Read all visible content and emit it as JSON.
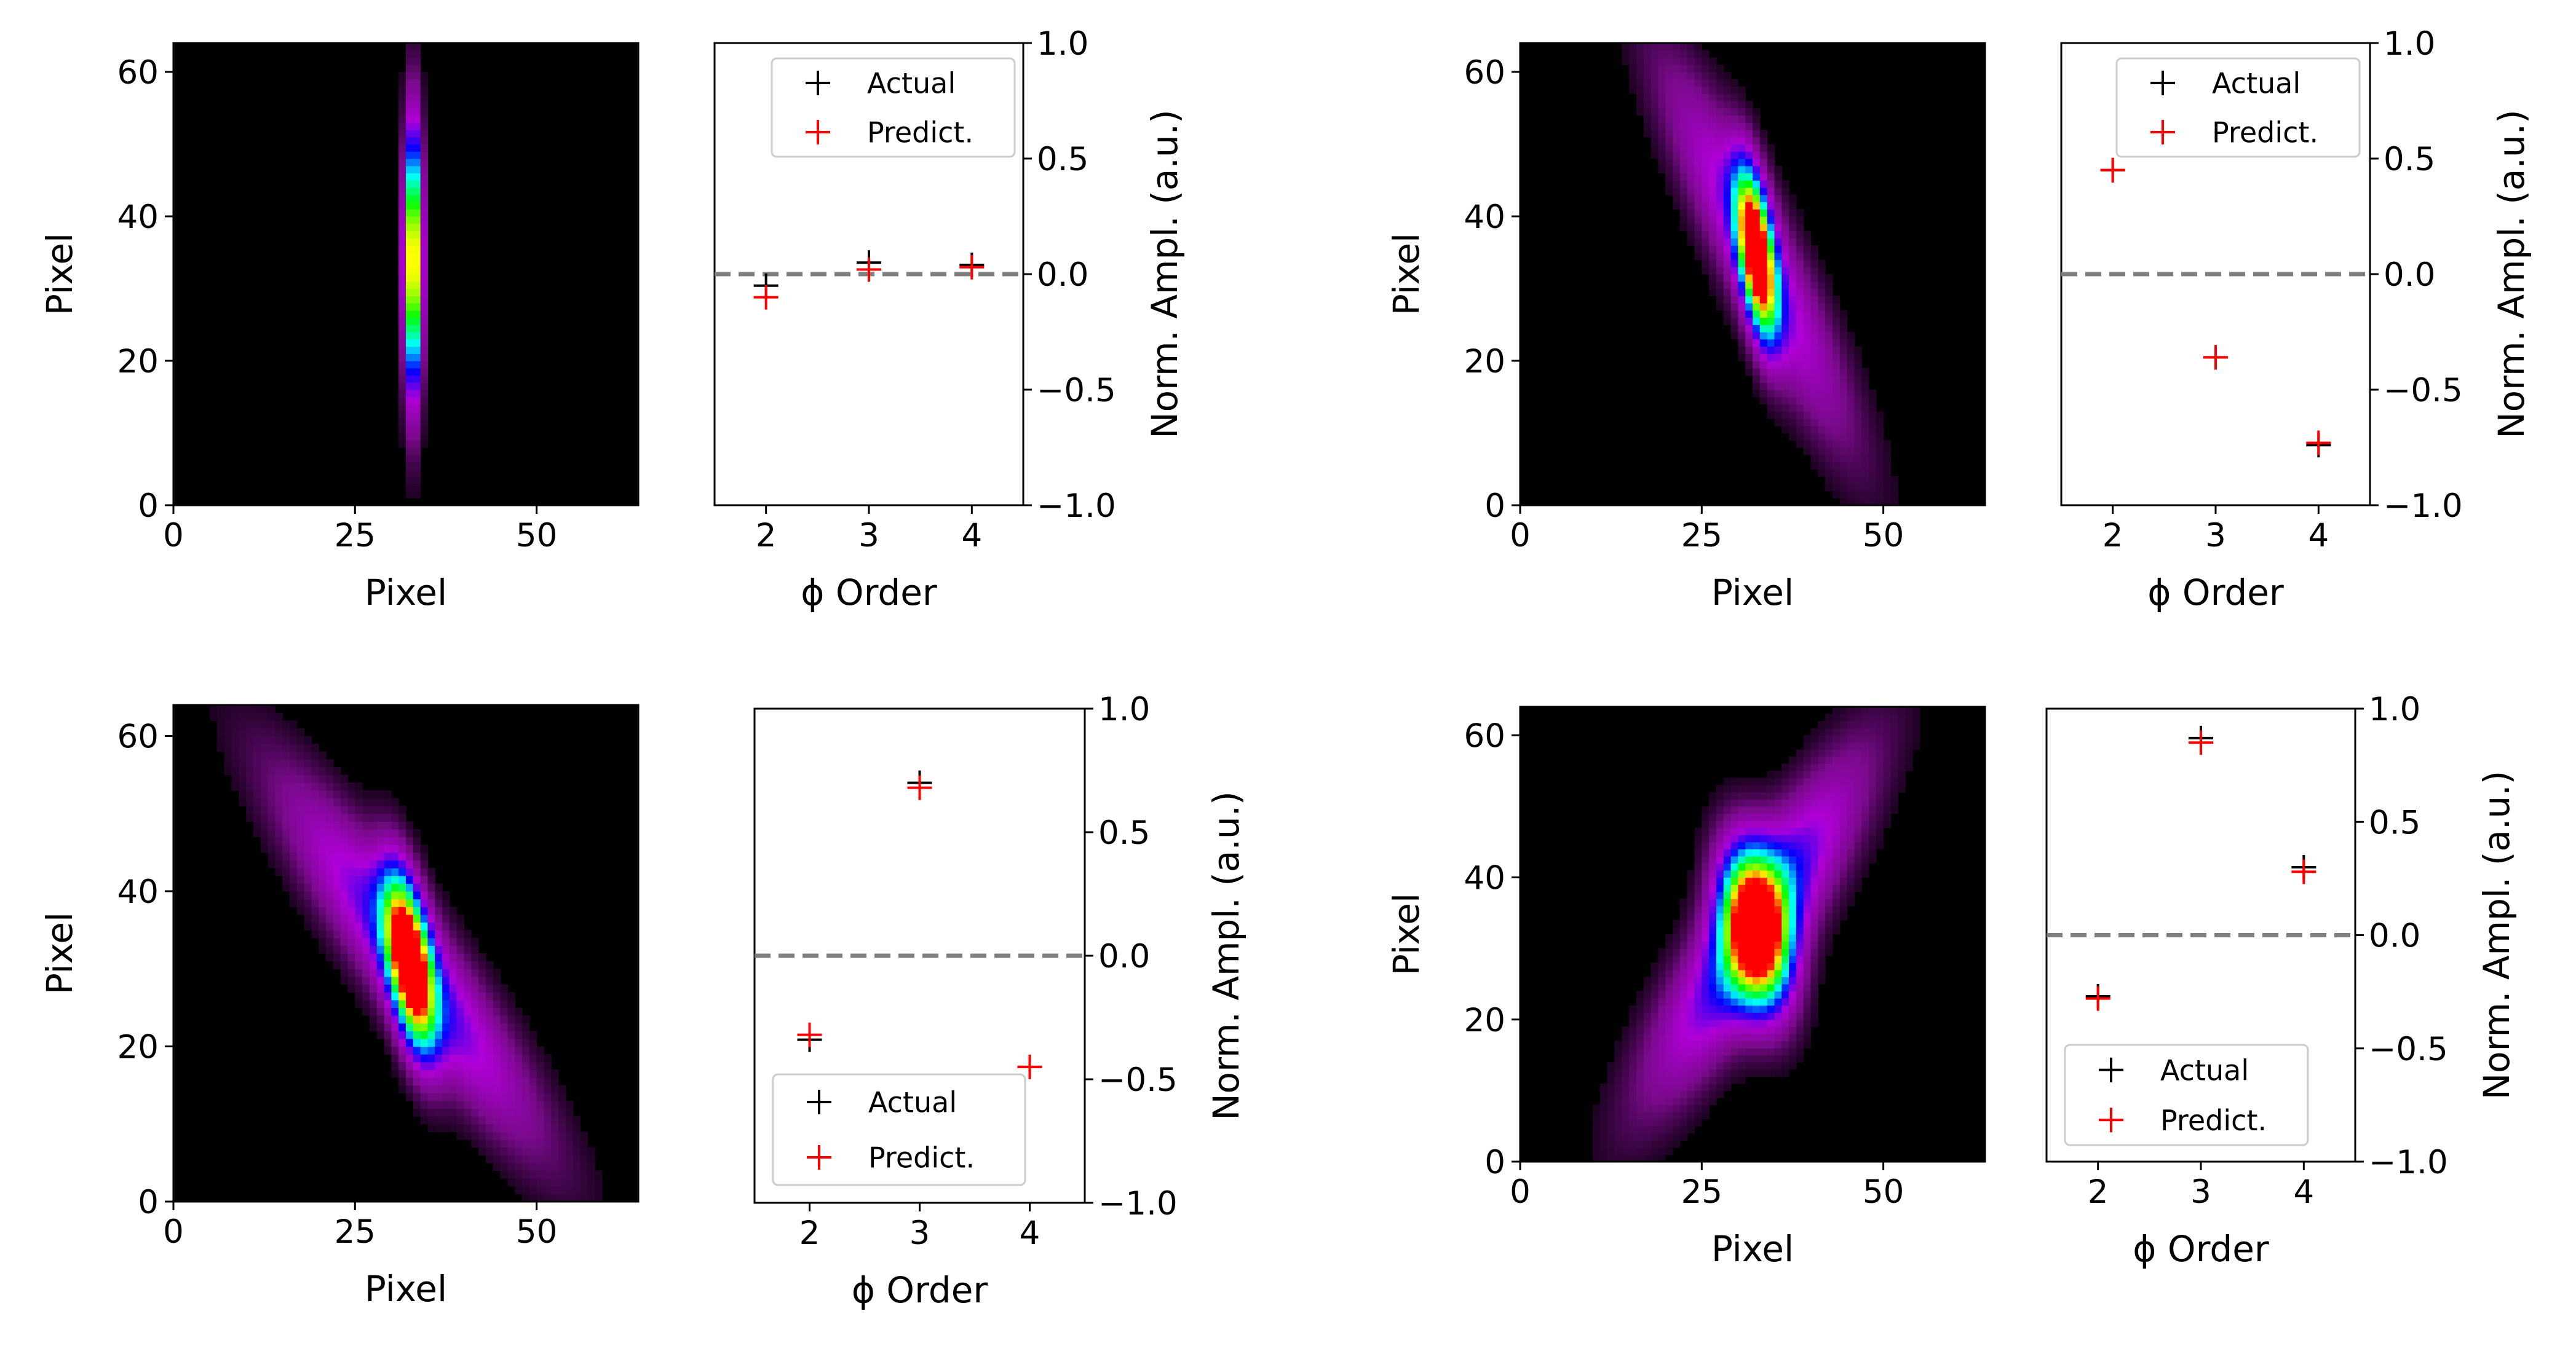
{
  "figure": {
    "axis_color": "#000000",
    "background": "#ffffff",
    "zero_line_color": "#808080",
    "colormap": [
      "#000000",
      "#7a0a8c",
      "#b000d8",
      "#0000ff",
      "#00ffff",
      "#00ff00",
      "#ffff00",
      "#ff0000"
    ]
  },
  "chart_data": [
    {
      "type": "heatmap",
      "panel": "top-left",
      "xlabel": "Pixel",
      "ylabel": "Pixel",
      "xlim": [
        0,
        64
      ],
      "ylim": [
        0,
        64
      ],
      "xticks": [
        0,
        25,
        50
      ],
      "yticks": [
        0,
        20,
        40,
        60
      ],
      "grid": false,
      "blob": {
        "cx": 33,
        "cy": 34,
        "sigma_x": 0.9,
        "sigma_y": 13,
        "tilt": 0
      },
      "halo": {
        "amp": 0.0,
        "sigma_x": 1,
        "sigma_y": 1,
        "tilt": 0
      }
    },
    {
      "type": "scatter",
      "panel": "top-left",
      "xlabel": "ϕ Order",
      "ylabel": "Norm. Ampl. (a.u.)",
      "xlim": [
        1.5,
        4.5
      ],
      "ylim": [
        -1.0,
        1.0
      ],
      "xticks": [
        2,
        3,
        4
      ],
      "yticks": [
        1.0,
        0.5,
        0.0,
        -0.5,
        -1.0
      ],
      "ytick_labels": [
        "1.0",
        "0.5",
        "0.0",
        "−0.5",
        "−1.0"
      ],
      "y_axis_position": "right",
      "legend_position": "top",
      "reference_line": {
        "y": 0.0,
        "style": "dashed"
      },
      "series": [
        {
          "name": "Actual",
          "color": "#000000",
          "x": [
            2,
            3,
            4
          ],
          "y": [
            -0.05,
            0.05,
            0.04
          ]
        },
        {
          "name": "Predict.",
          "color": "#ff0000",
          "x": [
            2,
            3,
            4
          ],
          "y": [
            -0.1,
            0.02,
            0.03
          ]
        }
      ]
    },
    {
      "type": "heatmap",
      "panel": "top-right",
      "xlabel": "Pixel",
      "ylabel": "Pixel",
      "xlim": [
        0,
        64
      ],
      "ylim": [
        0,
        64
      ],
      "xticks": [
        0,
        25,
        50
      ],
      "yticks": [
        0,
        20,
        40,
        60
      ],
      "grid": false,
      "blob": {
        "cx": 32.5,
        "cy": 35,
        "sigma_x": 1.6,
        "sigma_y": 8,
        "tilt": -0.12
      },
      "halo": {
        "amp": 0.35,
        "sigma_x": 4,
        "sigma_y": 18,
        "tilt": -0.45
      }
    },
    {
      "type": "scatter",
      "panel": "top-right",
      "xlabel": "ϕ Order",
      "ylabel": "Norm. Ampl. (a.u.)",
      "xlim": [
        1.5,
        4.5
      ],
      "ylim": [
        -1.0,
        1.0
      ],
      "xticks": [
        2,
        3,
        4
      ],
      "yticks": [
        1.0,
        0.5,
        0.0,
        -0.5,
        -1.0
      ],
      "ytick_labels": [
        "1.0",
        "0.5",
        "0.0",
        "−0.5",
        "−1.0"
      ],
      "y_axis_position": "right",
      "legend_position": "top",
      "reference_line": {
        "y": 0.0,
        "style": "dashed"
      },
      "series": [
        {
          "name": "Actual",
          "color": "#000000",
          "x": [
            2,
            3,
            4
          ],
          "y": [
            0.45,
            -0.36,
            -0.74
          ]
        },
        {
          "name": "Predict.",
          "color": "#ff0000",
          "x": [
            2,
            3,
            4
          ],
          "y": [
            0.45,
            -0.36,
            -0.73
          ]
        }
      ]
    },
    {
      "type": "heatmap",
      "panel": "bottom-left",
      "xlabel": "Pixel",
      "ylabel": "Pixel",
      "xlim": [
        0,
        64
      ],
      "ylim": [
        0,
        64
      ],
      "xticks": [
        0,
        25,
        50
      ],
      "yticks": [
        0,
        20,
        40,
        60
      ],
      "grid": false,
      "blob": {
        "cx": 32.5,
        "cy": 31,
        "sigma_x": 2.0,
        "sigma_y": 8,
        "tilt": -0.15
      },
      "halo": {
        "amp": 0.4,
        "sigma_x": 5,
        "sigma_y": 16,
        "tilt": -0.7
      }
    },
    {
      "type": "scatter",
      "panel": "bottom-left",
      "xlabel": "ϕ Order",
      "ylabel": "Norm. Ampl. (a.u.)",
      "xlim": [
        1.5,
        4.5
      ],
      "ylim": [
        -1.0,
        1.0
      ],
      "xticks": [
        2,
        3,
        4
      ],
      "yticks": [
        1.0,
        0.5,
        0.0,
        -0.5,
        -1.0
      ],
      "ytick_labels": [
        "1.0",
        "0.5",
        "0.0",
        "−0.5",
        "−1.0"
      ],
      "y_axis_position": "right",
      "legend_position": "bottom-right",
      "reference_line": {
        "y": 0.0,
        "style": "dashed"
      },
      "series": [
        {
          "name": "Actual",
          "color": "#000000",
          "x": [
            2,
            3,
            4
          ],
          "y": [
            -0.34,
            0.7,
            -0.45
          ]
        },
        {
          "name": "Predict.",
          "color": "#ff0000",
          "x": [
            2,
            3,
            4
          ],
          "y": [
            -0.32,
            0.68,
            -0.45
          ]
        }
      ]
    },
    {
      "type": "heatmap",
      "panel": "bottom-right",
      "xlabel": "Pixel",
      "ylabel": "Pixel",
      "xlim": [
        0,
        64
      ],
      "ylim": [
        0,
        64
      ],
      "xticks": [
        0,
        25,
        50
      ],
      "yticks": [
        0,
        20,
        40,
        60
      ],
      "grid": false,
      "blob": {
        "cx": 32.5,
        "cy": 33,
        "sigma_x": 3.2,
        "sigma_y": 8,
        "tilt": -0.12
      },
      "halo": {
        "amp": 0.45,
        "sigma_x": 5,
        "sigma_y": 16,
        "tilt": 0.55
      }
    },
    {
      "type": "scatter",
      "panel": "bottom-right",
      "xlabel": "ϕ Order",
      "ylabel": "Norm. Ampl. (a.u.)",
      "xlim": [
        1.5,
        4.5
      ],
      "ylim": [
        -1.0,
        1.0
      ],
      "xticks": [
        2,
        3,
        4
      ],
      "yticks": [
        1.0,
        0.5,
        0.0,
        -0.5,
        -1.0
      ],
      "ytick_labels": [
        "1.0",
        "0.5",
        "0.0",
        "−0.5",
        "−1.0"
      ],
      "y_axis_position": "right",
      "legend_position": "bottom-left",
      "reference_line": {
        "y": 0.0,
        "style": "dashed"
      },
      "series": [
        {
          "name": "Actual",
          "color": "#000000",
          "x": [
            2,
            3,
            4
          ],
          "y": [
            -0.27,
            0.87,
            0.3
          ]
        },
        {
          "name": "Predict.",
          "color": "#ff0000",
          "x": [
            2,
            3,
            4
          ],
          "y": [
            -0.28,
            0.85,
            0.28
          ]
        }
      ]
    }
  ]
}
